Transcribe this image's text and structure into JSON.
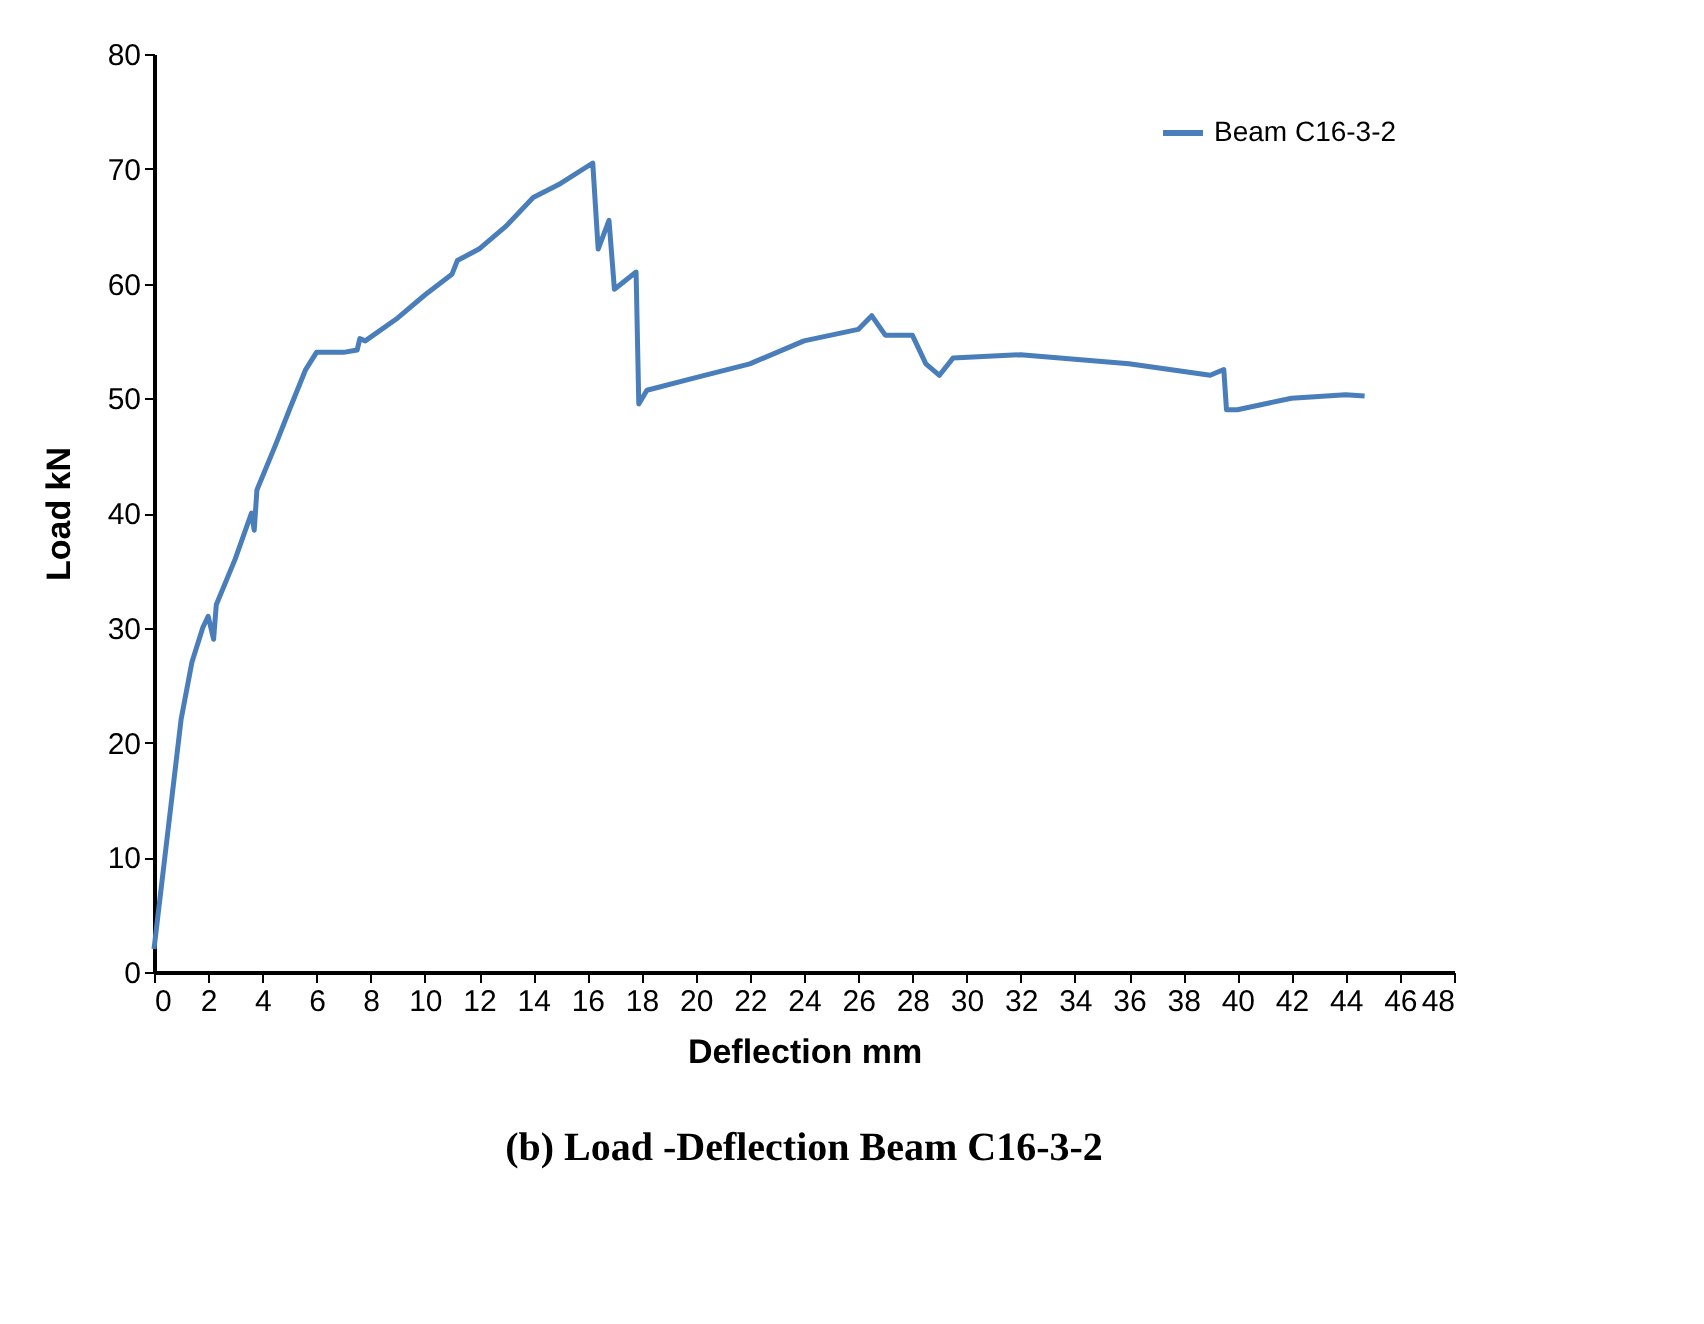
{
  "chart_data": {
    "type": "line",
    "title": "(b) Load -Deflection Beam C16-3-2",
    "xlabel": "Deflection mm",
    "ylabel": "Load   kN",
    "x": [
      0,
      0.5,
      1,
      1.4,
      1.8,
      2,
      2.2,
      2.3,
      3,
      3.6,
      3.7,
      3.8,
      4.5,
      5,
      5.6,
      6,
      7,
      7.5,
      7.6,
      7.8,
      9,
      10,
      11,
      11.2,
      12,
      13,
      14,
      15,
      16.2,
      16.4,
      16.8,
      17,
      17.8,
      17.9,
      18.2,
      20,
      22,
      24,
      26,
      26.5,
      27,
      28,
      28.5,
      29,
      29.5,
      32,
      36,
      39,
      39.5,
      39.6,
      40,
      41,
      42,
      44,
      44.7
    ],
    "series": [
      {
        "name": "Beam C16-3-2",
        "color": "#4a7ebb",
        "values": [
          2,
          12,
          22,
          27,
          30,
          31,
          29,
          32,
          36,
          40,
          38.5,
          42,
          46,
          49,
          52.5,
          54,
          54,
          54.2,
          55.2,
          55,
          57,
          59,
          60.8,
          62,
          63,
          65,
          67.5,
          68.7,
          70.5,
          63,
          65.5,
          59.5,
          61,
          49.5,
          50.7,
          51.8,
          53,
          55,
          56,
          57.2,
          55.5,
          55.5,
          53,
          52,
          53.5,
          53.8,
          53,
          52,
          52.5,
          49,
          49,
          49.5,
          50,
          50.3,
          50.2
        ]
      }
    ],
    "xlim": [
      0,
      48
    ],
    "xticks": [
      0,
      2,
      4,
      6,
      8,
      10,
      12,
      14,
      16,
      18,
      20,
      22,
      24,
      26,
      28,
      30,
      32,
      34,
      36,
      38,
      40,
      42,
      44,
      46,
      48
    ],
    "ylim": [
      0,
      80
    ],
    "yticks": [
      0,
      10,
      20,
      30,
      40,
      50,
      60,
      70,
      80
    ],
    "grid": false,
    "legend": "top right",
    "marker": "none",
    "line_style": "solid"
  }
}
